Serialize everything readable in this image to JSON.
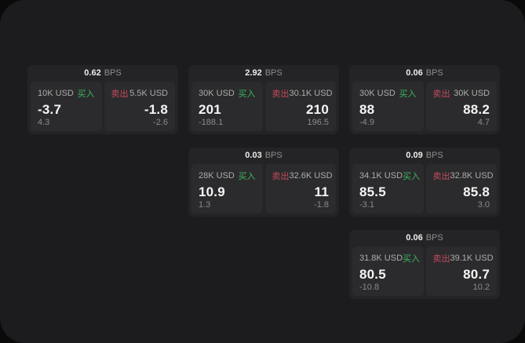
{
  "labels": {
    "bps": "BPS",
    "buy": "买入",
    "sell": "卖出"
  },
  "colors": {
    "page_bg": "#1c1c1e",
    "outer_bg": "#0a0a0a",
    "card_bg": "#242426",
    "panel_bg": "#2b2b2d",
    "buy_accent": "#3cb45c",
    "sell_accent": "#c54a5e"
  },
  "cards": [
    {
      "bps": "0.62",
      "buy": {
        "size": "10K USD",
        "price": "-3.7",
        "delta": "4.3"
      },
      "sell": {
        "size": "5.5K USD",
        "price": "-1.8",
        "delta": "-2.6"
      }
    },
    {
      "bps": "2.92",
      "buy": {
        "size": "30K USD",
        "price": "201",
        "delta": "-188.1"
      },
      "sell": {
        "size": "30.1K USD",
        "price": "210",
        "delta": "196.5"
      }
    },
    {
      "bps": "0.06",
      "buy": {
        "size": "30K USD",
        "price": "88",
        "delta": "-4.9"
      },
      "sell": {
        "size": "30K USD",
        "price": "88.2",
        "delta": "4.7"
      }
    },
    {
      "bps": "0.03",
      "buy": {
        "size": "28K USD",
        "price": "10.9",
        "delta": "1.3"
      },
      "sell": {
        "size": "32.6K USD",
        "price": "11",
        "delta": "-1.8"
      }
    },
    {
      "bps": "0.09",
      "buy": {
        "size": "34.1K USD",
        "price": "85.5",
        "delta": "-3.1"
      },
      "sell": {
        "size": "32.8K USD",
        "price": "85.8",
        "delta": "3.0"
      }
    },
    {
      "bps": "0.06",
      "buy": {
        "size": "31.8K USD",
        "price": "80.5",
        "delta": "-10.8"
      },
      "sell": {
        "size": "39.1K USD",
        "price": "80.7",
        "delta": "10.2"
      }
    }
  ]
}
